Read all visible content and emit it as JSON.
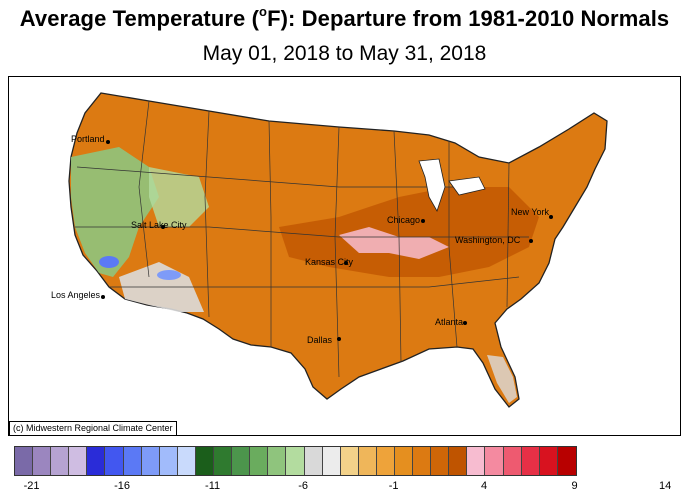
{
  "title": {
    "prefix": "Average Temperature (",
    "degree": "o",
    "suffix": "F): Departure from 1981-2010 Normals"
  },
  "subtitle": "May 01, 2018 to May 31, 2018",
  "credit": "(c) Midwestern Regional Climate Center",
  "cities": [
    "Portland",
    "Salt Lake City",
    "Los Angeles",
    "Kansas City",
    "Chicago",
    "Dallas",
    "Atlanta",
    "New York",
    "Washington, DC"
  ],
  "legend": {
    "colors": [
      "#7a6aa8",
      "#9b86bf",
      "#b6a3d2",
      "#cfbde2",
      "#2a2cd8",
      "#4257f0",
      "#5b79f5",
      "#7e9bf8",
      "#a1bbfb",
      "#c9dafc",
      "#1b5e1b",
      "#2f7a2f",
      "#4c954c",
      "#6aac5e",
      "#8fc47d",
      "#b3dc9f",
      "#d9d9d9",
      "#ececec",
      "#f3d28a",
      "#efb65a",
      "#eea33a",
      "#e58f1f",
      "#dc7a12",
      "#cf6608",
      "#bf5400",
      "#f7bcd0",
      "#f48aa0",
      "#ee5a70",
      "#e63046",
      "#d8121f",
      "#b80000"
    ],
    "ticks": [
      "-21",
      "-16",
      "-11",
      "-6",
      "-1",
      "4",
      "9",
      "14"
    ]
  },
  "map_palette": {
    "ocean": "#ffffff",
    "warm": "#dc7a12",
    "warmer": "#c96010",
    "mild": "#e89a35",
    "cool_green": "#6aac5e",
    "neutral": "#dcdcdc",
    "blue": "#5b79f5",
    "pink": "#f7bcd0",
    "water_lake": "#ffffff"
  }
}
